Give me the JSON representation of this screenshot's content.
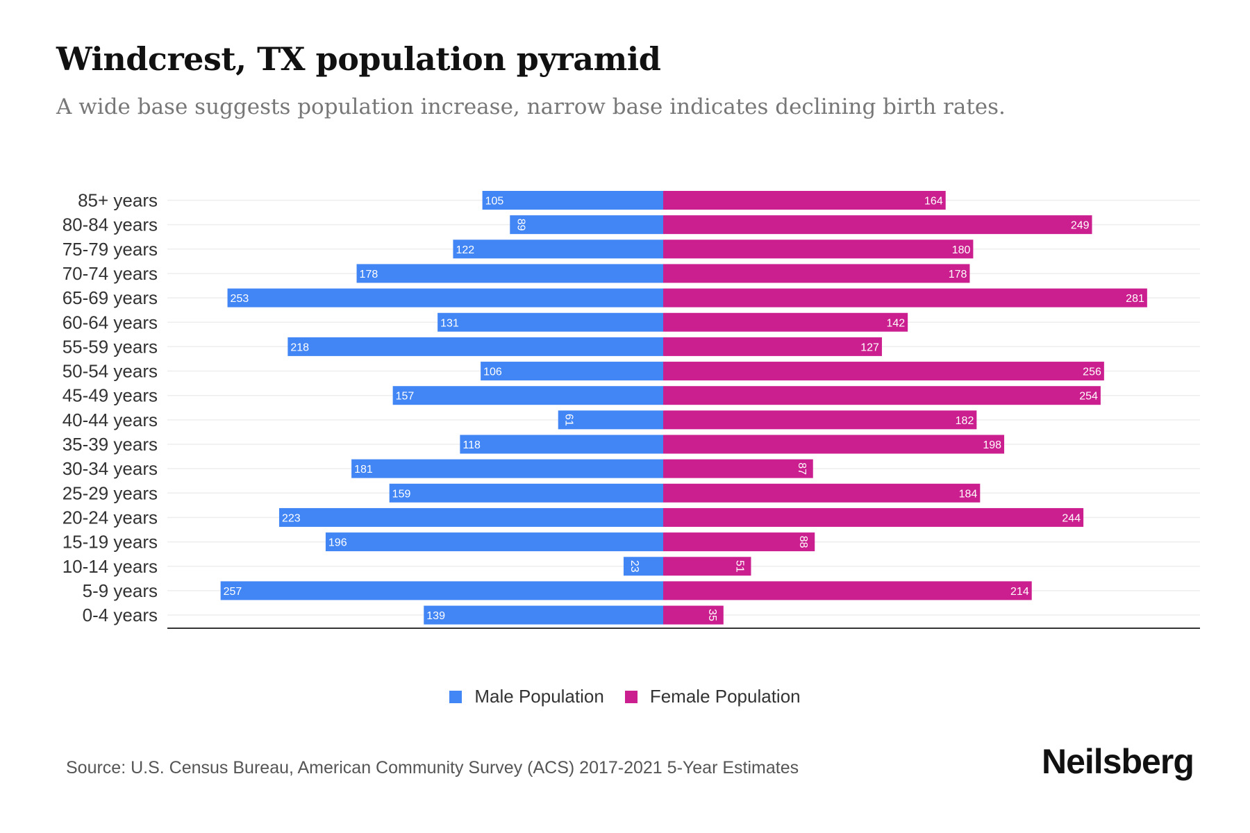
{
  "title": "Windcrest, TX population pyramid",
  "subtitle": "A wide base suggests population increase, narrow base indicates declining birth rates.",
  "source": "Source: U.S. Census Bureau, American Community Survey (ACS) 2017-2021 5-Year Estimates",
  "logo": "Neilsberg",
  "chart_data": {
    "type": "bar",
    "orientation": "horizontal-diverging",
    "categories": [
      "85+ years",
      "80-84 years",
      "75-79 years",
      "70-74 years",
      "65-69 years",
      "60-64 years",
      "55-59 years",
      "50-54 years",
      "45-49 years",
      "40-44 years",
      "35-39 years",
      "30-34 years",
      "25-29 years",
      "20-24 years",
      "15-19 years",
      "10-14 years",
      "5-9 years",
      "0-4 years"
    ],
    "series": [
      {
        "name": "Male Population",
        "color": "#4285f4",
        "side": "left",
        "values": [
          105,
          89,
          122,
          178,
          253,
          131,
          218,
          106,
          157,
          61,
          118,
          181,
          159,
          223,
          196,
          23,
          257,
          139
        ]
      },
      {
        "name": "Female Population",
        "color": "#cc1f8f",
        "side": "right",
        "values": [
          164,
          249,
          180,
          178,
          281,
          142,
          127,
          256,
          254,
          182,
          198,
          87,
          184,
          244,
          88,
          51,
          214,
          35
        ]
      }
    ],
    "legend_position": "bottom",
    "grid": true,
    "data_labels": true
  }
}
